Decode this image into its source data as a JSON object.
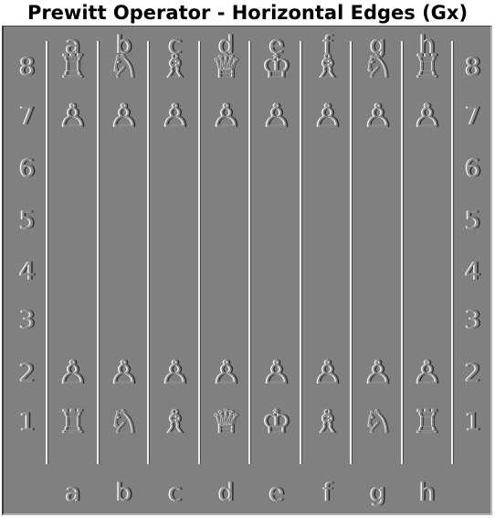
{
  "title": "Prewitt Operator - Horizontal Edges (Gx)",
  "board": {
    "files": [
      "a",
      "b",
      "c",
      "d",
      "e",
      "f",
      "g",
      "h"
    ],
    "ranks_top_to_bottom": [
      "8",
      "7",
      "6",
      "5",
      "4",
      "3",
      "2",
      "1"
    ],
    "rows": [
      {
        "rank": "8",
        "pieces": [
          "rook",
          "knight",
          "bishop",
          "queen",
          "king",
          "bishop",
          "knight",
          "rook"
        ],
        "glyphs": [
          "♖",
          "♘",
          "♗",
          "♕",
          "♔",
          "♗",
          "♘",
          "♖"
        ]
      },
      {
        "rank": "7",
        "pieces": [
          "pawn",
          "pawn",
          "pawn",
          "pawn",
          "pawn",
          "pawn",
          "pawn",
          "pawn"
        ],
        "glyphs": [
          "♙",
          "♙",
          "♙",
          "♙",
          "♙",
          "♙",
          "♙",
          "♙"
        ]
      },
      {
        "rank": "2",
        "pieces": [
          "pawn",
          "pawn",
          "pawn",
          "pawn",
          "pawn",
          "pawn",
          "pawn",
          "pawn"
        ],
        "glyphs": [
          "♙",
          "♙",
          "♙",
          "♙",
          "♙",
          "♙",
          "♙",
          "♙"
        ]
      },
      {
        "rank": "1",
        "pieces": [
          "rook",
          "knight",
          "bishop",
          "queen",
          "king",
          "bishop",
          "knight",
          "rook"
        ],
        "glyphs": [
          "♖",
          "♘",
          "♗",
          "♕",
          "♔",
          "♗",
          "♘",
          "♖"
        ]
      }
    ]
  },
  "colors": {
    "background": "#808080",
    "edge_light": "#f2f2f2",
    "edge_dark": "#2a2a2a"
  }
}
